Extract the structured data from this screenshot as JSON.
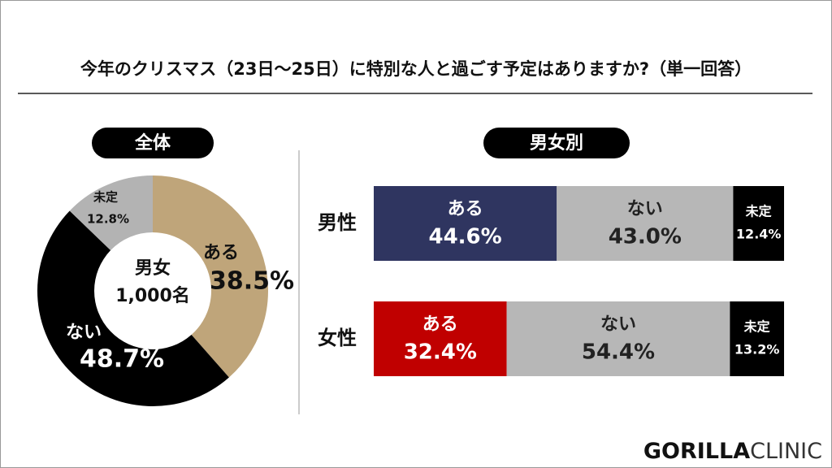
{
  "title": "今年のクリスマス（23日〜25日）に特別な人と過ごす予定はありますか?（単一回答）",
  "logo": {
    "bold": "GORILLA",
    "light": "CLINIC"
  },
  "chart_data": [
    {
      "type": "pie",
      "title": "全体",
      "center_label": [
        "男女",
        "1,000名"
      ],
      "categories": [
        "ある",
        "ない",
        "未定"
      ],
      "values": [
        38.5,
        48.7,
        12.8
      ],
      "value_labels": [
        "38.5%",
        "48.7%",
        "12.8%"
      ],
      "colors": [
        "#bfa57a",
        "#000000",
        "#b3b3b3"
      ]
    },
    {
      "type": "bar",
      "title": "男女別",
      "stacked": true,
      "orientation": "horizontal",
      "categories": [
        "男性",
        "女性"
      ],
      "xlim": [
        0,
        100
      ],
      "series": [
        {
          "name": "ある",
          "colors": [
            "#2f3560",
            "#c00000"
          ],
          "values": [
            44.6,
            32.4
          ],
          "value_labels": [
            "44.6%",
            "32.4%"
          ]
        },
        {
          "name": "ない",
          "color": "#b7b7b7",
          "values": [
            43.0,
            54.4
          ],
          "value_labels": [
            "43.0%",
            "54.4%"
          ]
        },
        {
          "name": "未定",
          "color": "#000000",
          "values": [
            12.4,
            13.2
          ],
          "value_labels": [
            "12.4%",
            "13.2%"
          ]
        }
      ]
    }
  ]
}
